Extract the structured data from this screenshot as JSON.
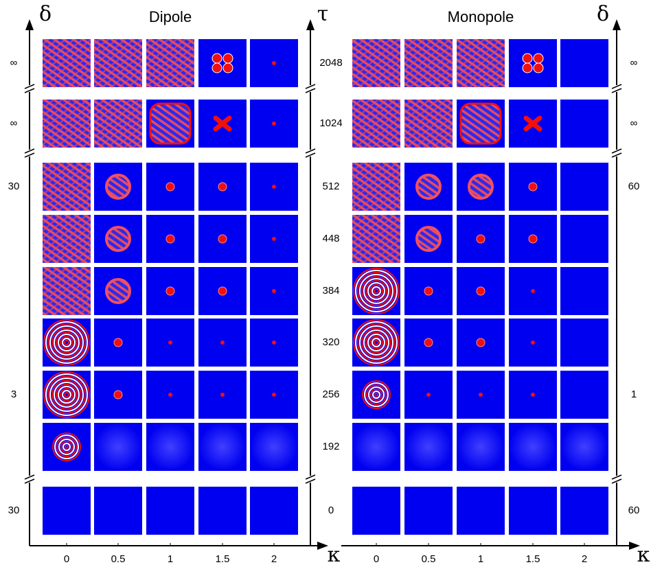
{
  "axes": {
    "delta_left": "δ",
    "tau": "τ",
    "delta_right": "δ",
    "kappa_left": "κ",
    "kappa_right": "κ"
  },
  "tau_labels": [
    "2048",
    "1024",
    "512",
    "448",
    "384",
    "320",
    "256",
    "192",
    "0"
  ],
  "panels": [
    {
      "title": "Dipole",
      "kappa_ticks": [
        "0",
        "0.5",
        "1",
        "1.5",
        "2"
      ],
      "delta_labels": [
        "∞",
        "∞",
        "30",
        null,
        null,
        null,
        "3",
        null,
        "30"
      ]
    },
    {
      "title": "Monopole",
      "kappa_ticks": [
        "0",
        "0.5",
        "1",
        "1.5",
        "2"
      ],
      "delta_labels": [
        "∞",
        "∞",
        "60",
        null,
        null,
        null,
        "1",
        null,
        "60"
      ]
    }
  ]
}
